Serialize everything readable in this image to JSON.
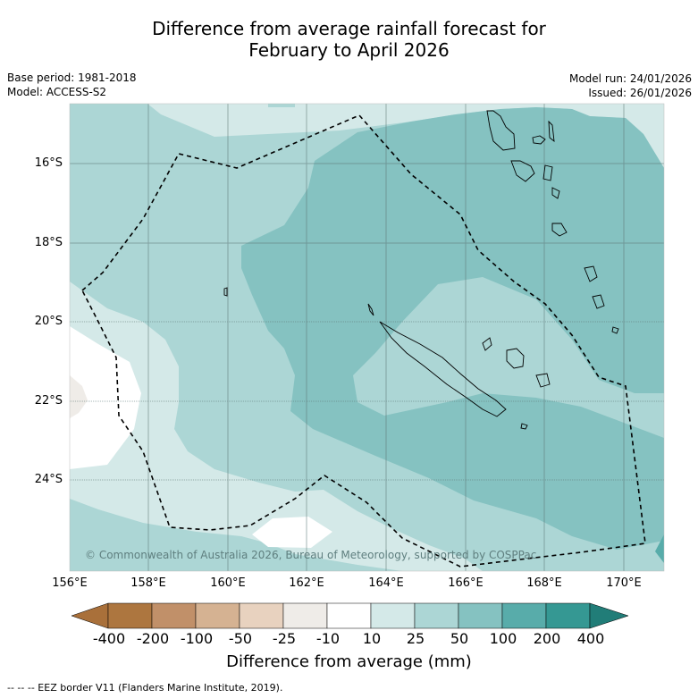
{
  "title": {
    "line1": "Difference from average rainfall forecast for",
    "line2": "February to April 2026"
  },
  "meta": {
    "base_period": "Base period: 1981-2018",
    "model": "Model: ACCESS-S2",
    "model_run": "Model run: 24/01/2026",
    "issued": "Issued: 26/01/2026"
  },
  "axes": {
    "lat_labels": [
      "16°S",
      "18°S",
      "20°S",
      "22°S",
      "24°S"
    ],
    "lon_labels": [
      "156°E",
      "158°E",
      "160°E",
      "162°E",
      "164°E",
      "166°E",
      "168°E",
      "170°E"
    ]
  },
  "copyright": "© Commonwealth of Australia 2026, Bureau of Meteorology, supported by COSPPac",
  "colorbar": {
    "ticks": [
      "-400",
      "-200",
      "-100",
      "-50",
      "-25",
      "-10",
      "10",
      "25",
      "50",
      "100",
      "200",
      "400"
    ],
    "colors": {
      "under": "#a9703a",
      "bins": [
        "#ad763f",
        "#c19069",
        "#d5b292",
        "#e8d2bf",
        "#efece8",
        "#ffffff",
        "#d4e9e8",
        "#acd6d5",
        "#85c2c1",
        "#58acaa",
        "#359893"
      ],
      "over": "#217d78"
    },
    "label": "Difference from average (mm)"
  },
  "map_colors": {
    "c10_25": "#d4e9e8",
    "c25_50": "#acd6d5",
    "c50_100": "#85c2c1",
    "c100_200": "#58acaa",
    "neutral": "#ffffff",
    "dry": "#efece8"
  },
  "footer": "-- -- -- EEZ border V11 (Flanders Marine Institute, 2019)."
}
